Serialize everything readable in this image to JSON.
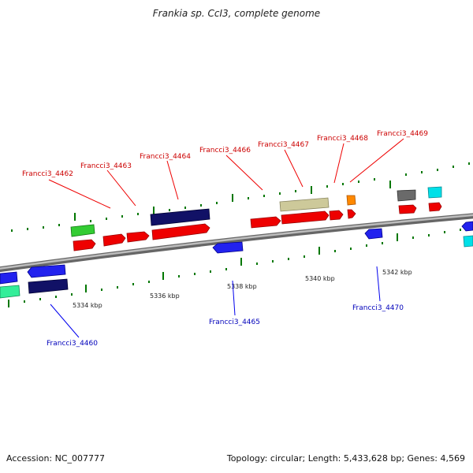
{
  "title": "Frankia sp. CcI3, complete genome",
  "footer": {
    "accession": "Accession: NC_007777",
    "stats": "Topology: circular; Length: 5,433,628 bp; Genes: 4,569"
  },
  "colors": {
    "backbone": "#8a8a8a",
    "tick_major": "#007700",
    "tick_minor": "#006600",
    "label_red": "#cc0000",
    "label_blue": "#0000bb"
  },
  "scale_labels": [
    "5334 kbp",
    "5336 kbp",
    "5338 kbp",
    "5340 kbp",
    "5342 kbp"
  ],
  "gene_labels_top": [
    "Francci3_4462",
    "Francci3_4463",
    "Francci3_4464",
    "Francci3_4466",
    "Francci3_4467",
    "Francci3_4468",
    "Francci3_4469"
  ],
  "gene_labels_bottom": [
    "Francci3_4460",
    "Francci3_4465",
    "Francci3_4470"
  ]
}
